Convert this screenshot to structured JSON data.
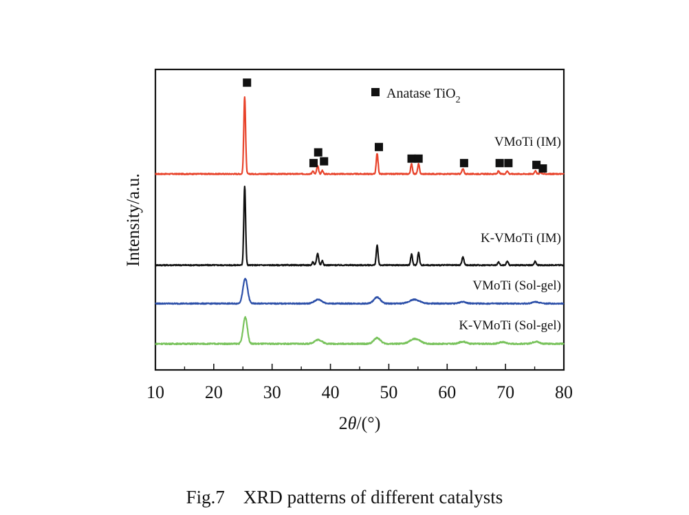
{
  "caption": "Fig.7    XRD patterns of different catalysts",
  "chart_data": {
    "type": "line",
    "xlabel_parts": [
      "2",
      "θ",
      "/(°)"
    ],
    "ylabel": "Intensity/a.u.",
    "xlim": [
      10,
      80
    ],
    "xticks": [
      10,
      20,
      30,
      40,
      50,
      60,
      70,
      80
    ],
    "yticks_shown": false,
    "grid": false,
    "legend": {
      "placement": "top-right",
      "marker": "filled-square",
      "label_main": "Anatase TiO",
      "label_sub": "2"
    },
    "series": [
      {
        "name": "VMoTi (IM)",
        "color": "#e8432b",
        "baseline": 0.0,
        "noise": 0.06,
        "peaks": [
          {
            "x": 25.3,
            "h": 8.6,
            "w": 0.22
          },
          {
            "x": 37.0,
            "h": 0.35,
            "w": 0.2
          },
          {
            "x": 37.8,
            "h": 0.9,
            "w": 0.22
          },
          {
            "x": 38.6,
            "h": 0.4,
            "w": 0.2
          },
          {
            "x": 48.0,
            "h": 2.3,
            "w": 0.22
          },
          {
            "x": 53.9,
            "h": 1.1,
            "w": 0.22
          },
          {
            "x": 55.1,
            "h": 1.1,
            "w": 0.22
          },
          {
            "x": 62.7,
            "h": 0.55,
            "w": 0.25
          },
          {
            "x": 68.8,
            "h": 0.3,
            "w": 0.22
          },
          {
            "x": 70.3,
            "h": 0.35,
            "w": 0.22
          },
          {
            "x": 75.1,
            "h": 0.35,
            "w": 0.22
          },
          {
            "x": 76.0,
            "h": 0.2,
            "w": 0.22
          }
        ]
      },
      {
        "name": "K-VMoTi (IM)",
        "color": "#111111",
        "baseline": -10.2,
        "noise": 0.06,
        "peaks": [
          {
            "x": 25.3,
            "h": 8.8,
            "w": 0.22
          },
          {
            "x": 37.0,
            "h": 0.35,
            "w": 0.2
          },
          {
            "x": 37.8,
            "h": 1.3,
            "w": 0.25
          },
          {
            "x": 38.6,
            "h": 0.5,
            "w": 0.2
          },
          {
            "x": 48.0,
            "h": 2.2,
            "w": 0.22
          },
          {
            "x": 53.9,
            "h": 1.2,
            "w": 0.22
          },
          {
            "x": 55.1,
            "h": 1.4,
            "w": 0.22
          },
          {
            "x": 62.7,
            "h": 0.9,
            "w": 0.25
          },
          {
            "x": 68.8,
            "h": 0.35,
            "w": 0.22
          },
          {
            "x": 70.3,
            "h": 0.45,
            "w": 0.22
          },
          {
            "x": 75.1,
            "h": 0.45,
            "w": 0.22
          }
        ]
      },
      {
        "name": "VMoTi (Sol-gel)",
        "color": "#2c4fa8",
        "baseline": -14.5,
        "noise": 0.06,
        "peaks": [
          {
            "x": 25.4,
            "h": 2.8,
            "w": 0.55
          },
          {
            "x": 37.9,
            "h": 0.45,
            "w": 0.9
          },
          {
            "x": 48.0,
            "h": 0.7,
            "w": 0.8
          },
          {
            "x": 54.4,
            "h": 0.45,
            "w": 1.2
          },
          {
            "x": 62.7,
            "h": 0.2,
            "w": 0.8
          },
          {
            "x": 75.2,
            "h": 0.2,
            "w": 0.8
          }
        ]
      },
      {
        "name": "K-VMoTi (Sol-gel)",
        "color": "#77c25a",
        "baseline": -19.0,
        "noise": 0.07,
        "peaks": [
          {
            "x": 25.4,
            "h": 3.0,
            "w": 0.5
          },
          {
            "x": 37.9,
            "h": 0.45,
            "w": 0.9
          },
          {
            "x": 48.0,
            "h": 0.65,
            "w": 0.8
          },
          {
            "x": 54.5,
            "h": 0.55,
            "w": 1.2
          },
          {
            "x": 62.7,
            "h": 0.25,
            "w": 0.8
          },
          {
            "x": 69.5,
            "h": 0.2,
            "w": 0.8
          },
          {
            "x": 75.2,
            "h": 0.25,
            "w": 0.8
          }
        ]
      }
    ],
    "markers": [
      {
        "x": 25.7,
        "y": 9.6
      },
      {
        "x": 37.1,
        "y": 0.6
      },
      {
        "x": 37.9,
        "y": 1.8
      },
      {
        "x": 38.9,
        "y": 0.8
      },
      {
        "x": 48.3,
        "y": 2.4
      },
      {
        "x": 53.9,
        "y": 1.1
      },
      {
        "x": 55.1,
        "y": 1.1
      },
      {
        "x": 62.9,
        "y": 0.6
      },
      {
        "x": 69.0,
        "y": 0.6
      },
      {
        "x": 70.5,
        "y": 0.6
      },
      {
        "x": 75.3,
        "y": 0.4
      },
      {
        "x": 76.4,
        "y": 0.0
      }
    ]
  }
}
